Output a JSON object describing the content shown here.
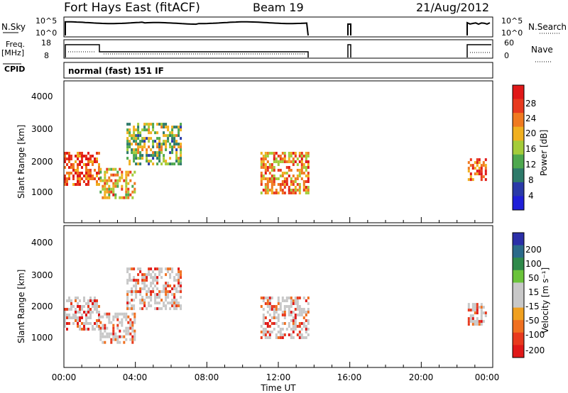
{
  "header": {
    "station": "Fort Hays East (fitACF)",
    "beam": "Beam 19",
    "date": "21/Aug/2012"
  },
  "top_panels": {
    "nsky_label": "N.Sky",
    "nsky_ticks": [
      "10^5",
      "10^0"
    ],
    "nsearch_label": "N.Search",
    "nsearch_ticks": [
      "10^5",
      "10^0"
    ],
    "freq_label": "Freq.",
    "freq_unit": "[MHz]",
    "freq_ticks": [
      "18",
      "8"
    ],
    "nave_label": "Nave",
    "nave_ticks": [
      "60",
      "0"
    ],
    "cpid_label": "CPID",
    "cpid_value": "normal (fast) 151 IF"
  },
  "colors": {
    "power_scale": [
      "#1f1fd8",
      "#2a3aa8",
      "#2e7a6a",
      "#4ea84e",
      "#a4cc3a",
      "#f0b020",
      "#f07a20",
      "#e83a1e",
      "#e01818"
    ],
    "velocity_scale": [
      "#2b2fa8",
      "#2b6a8a",
      "#2f8a4a",
      "#6ac33a",
      "#c8c8c8",
      "#c8c8c8",
      "#f0a020",
      "#f07020",
      "#e83a1e",
      "#e01818"
    ]
  },
  "chart_data": [
    {
      "type": "heatmap",
      "name": "power",
      "ylabel": "Slant Range [km]",
      "yticks": [
        "4000",
        "3000",
        "2000",
        "1000"
      ],
      "ylim": [
        200,
        4600
      ],
      "colorbar_label": "Power [dB]",
      "colorbar_ticks": [
        "28",
        "24",
        "20",
        "16",
        "12",
        "8",
        "4"
      ],
      "bands": [
        {
          "t0": 0.0,
          "t1": 2.0,
          "r0": 1400,
          "r1": 2400,
          "level": 0.85
        },
        {
          "t0": 2.0,
          "t1": 4.0,
          "r0": 1000,
          "r1": 1900,
          "level": 0.65
        },
        {
          "t0": 3.5,
          "t1": 6.5,
          "r0": 2000,
          "r1": 3300,
          "level": 0.45
        },
        {
          "t0": 11.0,
          "t1": 13.7,
          "r0": 1100,
          "r1": 2400,
          "level": 0.7
        },
        {
          "t0": 22.6,
          "t1": 23.6,
          "r0": 1500,
          "r1": 2200,
          "level": 0.8
        }
      ]
    },
    {
      "type": "heatmap",
      "name": "velocity",
      "ylabel": "Slant Range [km]",
      "yticks": [
        "4000",
        "3000",
        "2000",
        "1000"
      ],
      "ylim": [
        200,
        4600
      ],
      "colorbar_label": "Velocity [m s⁻¹]",
      "colorbar_ticks": [
        "200",
        "100",
        "50",
        "15",
        "-15",
        "-50",
        "-100",
        "-200"
      ],
      "xlabel": "Time UT",
      "xticks": [
        "00:00",
        "04:00",
        "08:00",
        "12:00",
        "16:00",
        "20:00",
        "00:00"
      ],
      "xlim": [
        0,
        24
      ]
    }
  ]
}
